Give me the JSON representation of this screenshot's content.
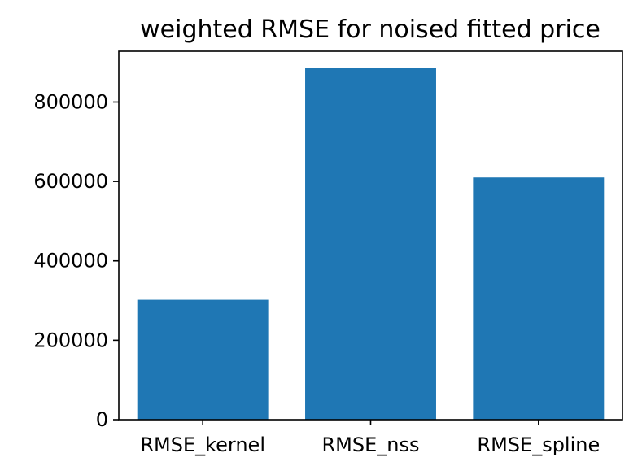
{
  "chart_data": {
    "type": "bar",
    "title": "weighted RMSE for noised fitted price",
    "xlabel": "",
    "ylabel": "",
    "categories": [
      "RMSE_kernel",
      "RMSE_nss",
      "RMSE_spline"
    ],
    "values": [
      302000,
      885000,
      610000
    ],
    "ylim": [
      0,
      928000
    ],
    "yticks": [
      0,
      200000,
      400000,
      600000,
      800000
    ],
    "ytick_labels": [
      "0",
      "200000",
      "400000",
      "600000",
      "800000"
    ],
    "grid": false,
    "legend": "none",
    "bar_color": "#1f77b4"
  }
}
